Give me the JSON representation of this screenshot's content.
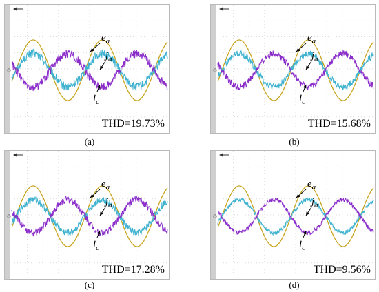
{
  "colors": {
    "e_a": "#c8a41e",
    "j_a": "#3fb2cf",
    "i_c": "#8a2cc9",
    "grid": "#d0d0d0",
    "frame": "#b9b9b9",
    "left_bar": "#cfcfcf"
  },
  "chart_data": [
    {
      "type": "line",
      "panel": "a",
      "caption": "(a)",
      "thd_text": "THD=19.73%",
      "curve_labels": [
        "e",
        "j",
        "i"
      ],
      "label_subscripts": [
        "a",
        "a",
        "c"
      ],
      "series": [
        {
          "key": "e_a",
          "amplitude": 1.0,
          "phase_deg": 0,
          "ripple": 0.0
        },
        {
          "key": "j_a",
          "amplitude": 0.55,
          "phase_deg": 0,
          "ripple": 0.14
        },
        {
          "key": "i_c",
          "amplitude": 0.55,
          "phase_deg": 180,
          "ripple": 0.14
        }
      ],
      "grid": true
    },
    {
      "type": "line",
      "panel": "b",
      "caption": "(b)",
      "thd_text": "THD=15.68%",
      "curve_labels": [
        "e",
        "j",
        "i"
      ],
      "label_subscripts": [
        "a",
        "a",
        "c"
      ],
      "series": [
        {
          "key": "e_a",
          "amplitude": 1.0,
          "phase_deg": 0,
          "ripple": 0.0
        },
        {
          "key": "j_a",
          "amplitude": 0.55,
          "phase_deg": 0,
          "ripple": 0.11
        },
        {
          "key": "i_c",
          "amplitude": 0.55,
          "phase_deg": 180,
          "ripple": 0.11
        }
      ],
      "grid": true
    },
    {
      "type": "line",
      "panel": "c",
      "caption": "(c)",
      "thd_text": "THD=17.28%",
      "curve_labels": [
        "e",
        "j",
        "i"
      ],
      "label_subscripts": [
        "a",
        "a",
        "c"
      ],
      "series": [
        {
          "key": "e_a",
          "amplitude": 1.0,
          "phase_deg": 0,
          "ripple": 0.0
        },
        {
          "key": "j_a",
          "amplitude": 0.55,
          "phase_deg": 0,
          "ripple": 0.12
        },
        {
          "key": "i_c",
          "amplitude": 0.55,
          "phase_deg": 180,
          "ripple": 0.12
        }
      ],
      "grid": true
    },
    {
      "type": "line",
      "panel": "d",
      "caption": "(d)",
      "thd_text": "THD=9.56%",
      "curve_labels": [
        "e",
        "j",
        "i"
      ],
      "label_subscripts": [
        "a",
        "a",
        "c"
      ],
      "series": [
        {
          "key": "e_a",
          "amplitude": 1.0,
          "phase_deg": 0,
          "ripple": 0.0
        },
        {
          "key": "j_a",
          "amplitude": 0.55,
          "phase_deg": 0,
          "ripple": 0.07
        },
        {
          "key": "i_c",
          "amplitude": 0.55,
          "phase_deg": 180,
          "ripple": 0.07
        }
      ],
      "grid": true
    }
  ]
}
